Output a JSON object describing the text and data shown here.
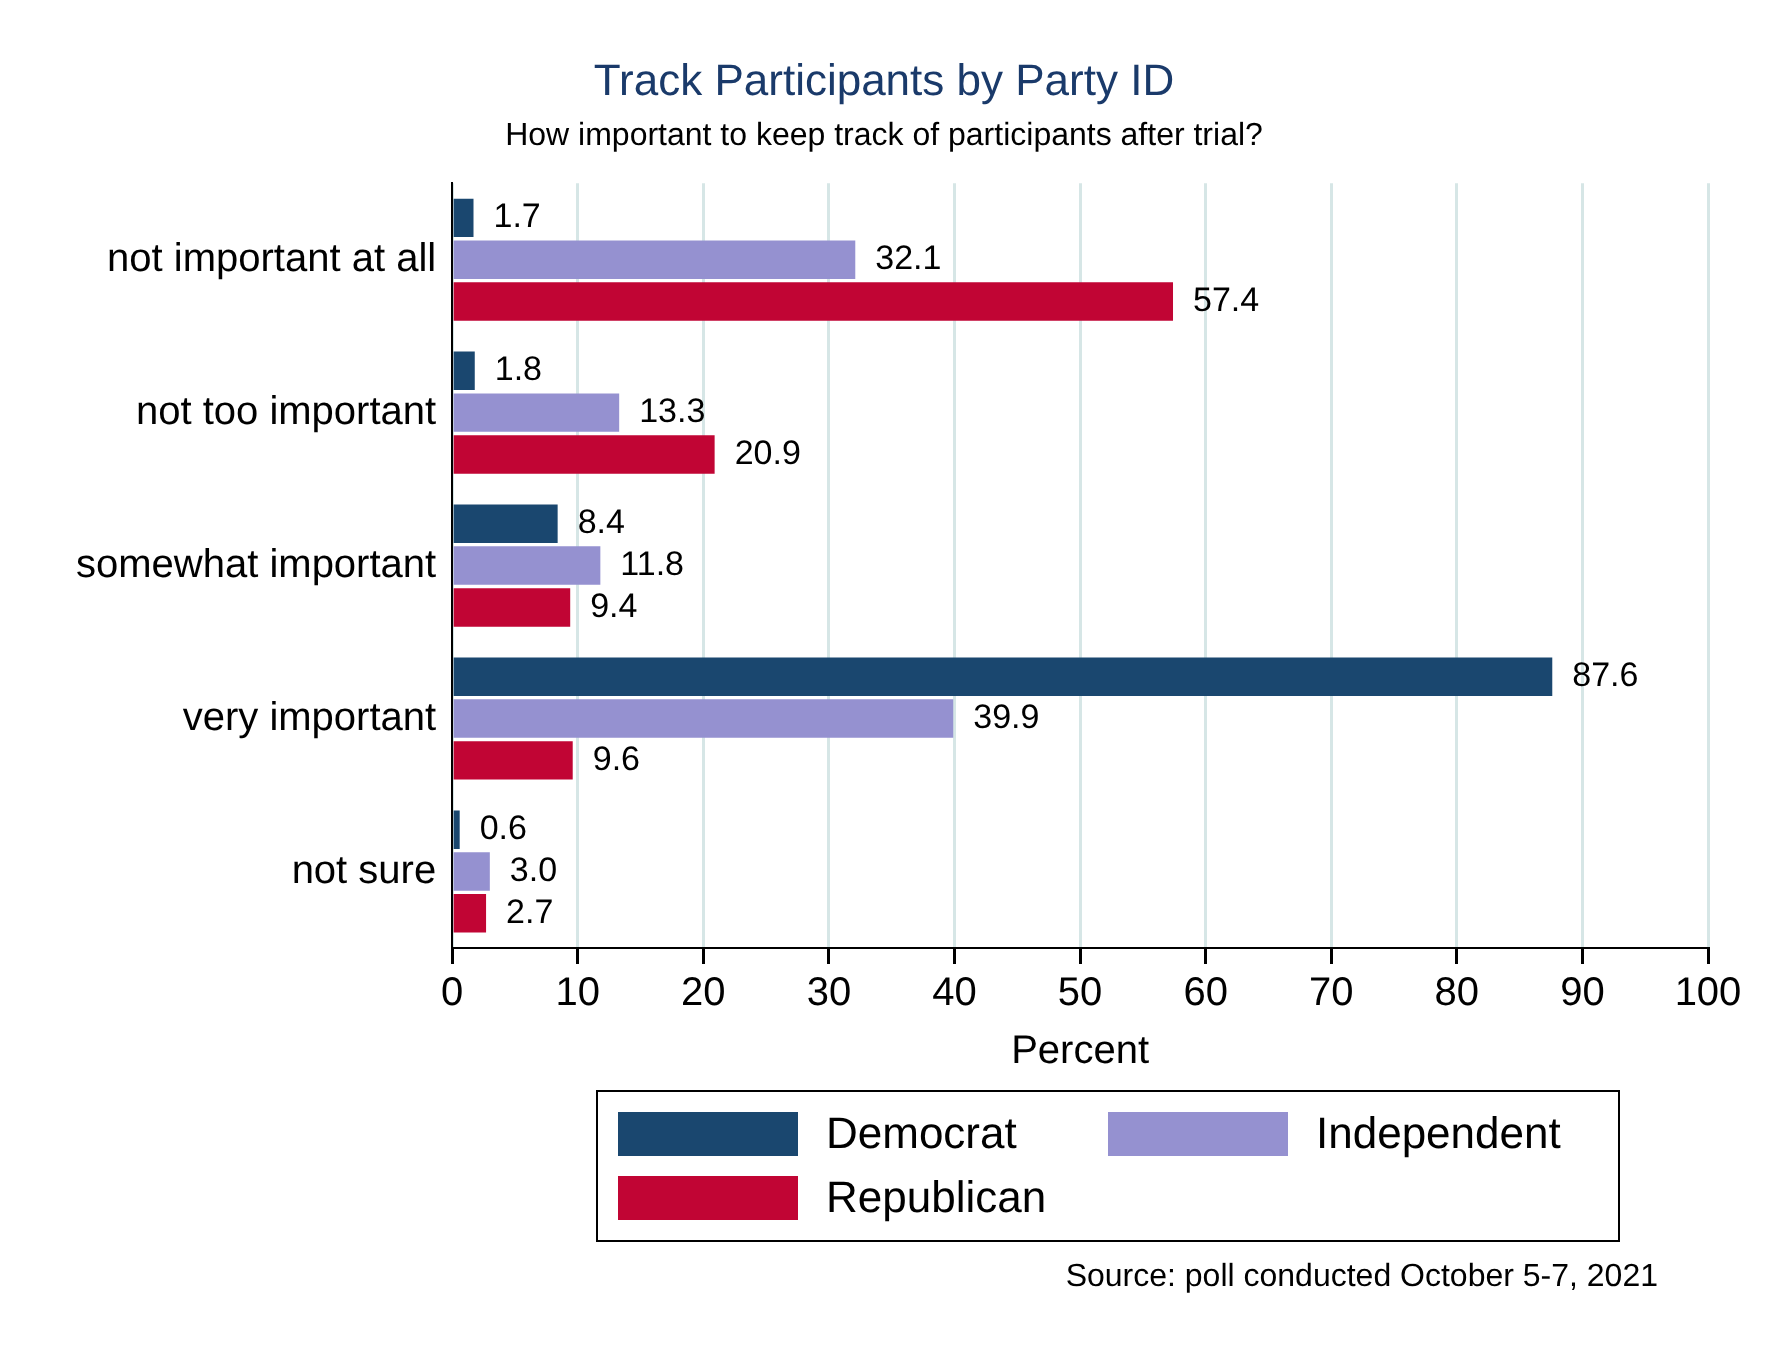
{
  "chart_data": {
    "type": "bar",
    "orientation": "horizontal",
    "title": "Track Participants by Party ID",
    "subtitle": "How important to keep track of participants after trial?",
    "xlabel": "Percent",
    "categories": [
      "not important at all",
      "not too important",
      "somewhat important",
      "very important",
      "not sure"
    ],
    "series": [
      {
        "name": "Democrat",
        "color": "#1a476f",
        "values": [
          1.7,
          1.8,
          8.4,
          87.6,
          0.6
        ],
        "value_labels": [
          "1.7",
          "1.8",
          "8.4",
          "87.6",
          "0.6"
        ]
      },
      {
        "name": "Independent",
        "color": "#9591d0",
        "values": [
          32.1,
          13.3,
          11.8,
          39.9,
          3.0
        ],
        "value_labels": [
          "32.1",
          "13.3",
          "11.8",
          "39.9",
          "3.0"
        ]
      },
      {
        "name": "Republican",
        "color": "#c10534",
        "values": [
          57.4,
          20.9,
          9.4,
          9.6,
          2.7
        ],
        "value_labels": [
          "57.4",
          "20.9",
          "9.4",
          "9.6",
          "2.7"
        ]
      }
    ],
    "xlim": [
      0,
      100
    ],
    "xticks": [
      0,
      10,
      20,
      30,
      40,
      50,
      60,
      70,
      80,
      90,
      100
    ],
    "grid": "x",
    "legend": "bottom",
    "annotations": [
      "Source: poll conducted October 5-7, 2021"
    ]
  }
}
